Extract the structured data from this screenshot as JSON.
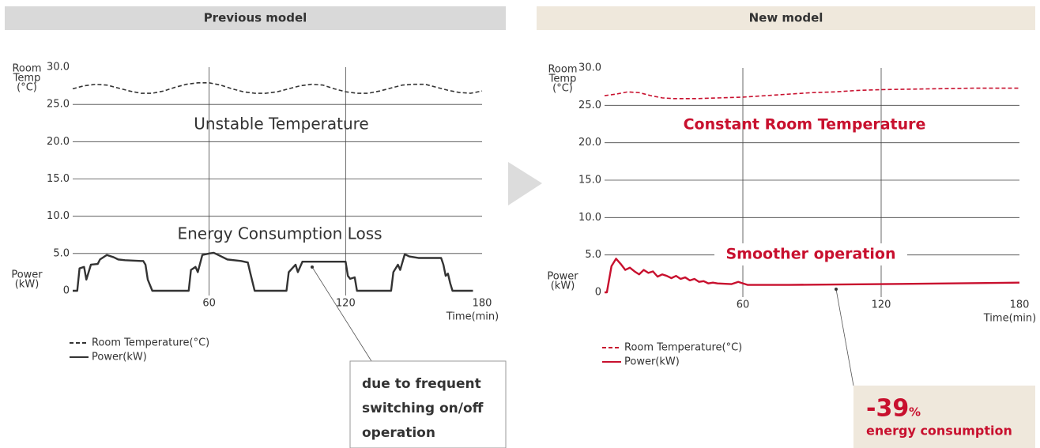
{
  "chart_data": [
    {
      "type": "line",
      "title": "Previous model",
      "ylabel_top": [
        "Room",
        "Temp",
        "(°C)"
      ],
      "ylabel_bottom": [
        "Power",
        "(kW)"
      ],
      "xlabel": "Time(min)",
      "xlim": [
        0,
        180
      ],
      "xticks": [
        60,
        120,
        180
      ],
      "ylim": [
        0,
        30
      ],
      "yticks": [
        0,
        {
          "value": 5,
          "label": "5.0"
        },
        {
          "value": 10,
          "label": "10.0"
        },
        {
          "value": 15,
          "label": "15.0"
        },
        {
          "value": 20,
          "label": "20.0"
        },
        {
          "value": 25,
          "label": "25.0"
        },
        {
          "value": 30,
          "label": "30.0"
        }
      ],
      "grid": true,
      "annotations": [
        "Unstable Temperature",
        "Energy Consumption Loss"
      ],
      "callout": [
        "due to frequent",
        "switching on/off",
        "operation"
      ],
      "series": [
        {
          "name": "Room Temperature(°C)",
          "color": "#333333",
          "style": "dashed",
          "x": [
            0,
            5,
            10,
            15,
            20,
            25,
            30,
            35,
            40,
            45,
            50,
            55,
            60,
            65,
            70,
            75,
            80,
            85,
            90,
            95,
            100,
            105,
            110,
            115,
            120,
            125,
            130,
            135,
            140,
            145,
            150,
            155,
            160,
            165,
            170,
            175,
            180
          ],
          "values": [
            27.1,
            27.5,
            27.7,
            27.6,
            27.2,
            26.8,
            26.5,
            26.5,
            26.8,
            27.3,
            27.7,
            27.9,
            27.9,
            27.6,
            27.1,
            26.7,
            26.5,
            26.5,
            26.7,
            27.1,
            27.5,
            27.7,
            27.6,
            27.1,
            26.7,
            26.5,
            26.5,
            26.8,
            27.2,
            27.6,
            27.7,
            27.7,
            27.3,
            26.9,
            26.6,
            26.5,
            26.8
          ]
        },
        {
          "name": "Power(kW)",
          "color": "#333333",
          "style": "solid",
          "x": [
            0,
            2,
            3,
            5,
            6,
            8,
            11,
            12,
            15,
            18,
            20,
            23,
            30,
            31,
            32,
            33,
            35,
            51,
            52,
            54,
            55,
            57,
            60,
            62,
            64,
            68,
            74,
            77,
            78,
            80,
            94,
            95,
            98,
            99,
            101,
            120,
            121,
            122,
            124,
            125,
            140,
            141,
            143,
            144,
            146,
            148,
            152,
            162,
            163,
            164,
            165,
            166,
            167,
            176
          ],
          "values": [
            0,
            0,
            3,
            3.2,
            1.5,
            3.5,
            3.6,
            4.2,
            4.8,
            4.5,
            4.2,
            4.1,
            4,
            4,
            3.5,
            1.5,
            0,
            0,
            2.8,
            3.2,
            2.5,
            4.8,
            5,
            5.1,
            4.8,
            4.2,
            4,
            3.8,
            2.5,
            0,
            0,
            2.5,
            3.5,
            2.5,
            3.9,
            3.9,
            2,
            1.6,
            1.8,
            0,
            0,
            2.5,
            3.5,
            2.8,
            4.9,
            4.6,
            4.4,
            4.4,
            3.5,
            2,
            2.3,
            1,
            0,
            0
          ]
        }
      ]
    },
    {
      "type": "line",
      "title": "New model",
      "ylabel_top": [
        "Room",
        "Temp",
        "(°C)"
      ],
      "ylabel_bottom": [
        "Power",
        "(kW)"
      ],
      "xlabel": "Time(min)",
      "xlim": [
        0,
        180
      ],
      "xticks": [
        60,
        120,
        180
      ],
      "ylim": [
        0,
        30
      ],
      "yticks": [
        0,
        {
          "value": 5,
          "label": "5.0"
        },
        {
          "value": 10,
          "label": "10.0"
        },
        {
          "value": 15,
          "label": "15.0"
        },
        {
          "value": 20,
          "label": "20.0"
        },
        {
          "value": 25,
          "label": "25.0"
        },
        {
          "value": 30,
          "label": "30.0"
        }
      ],
      "grid": true,
      "annotations": [
        "Constant Room Temperature",
        "Smoother operation"
      ],
      "callout": [
        "-39",
        "%",
        "energy consumption"
      ],
      "series": [
        {
          "name": "Room Temperature(°C)",
          "color": "#c8102e",
          "style": "dashed",
          "x": [
            0,
            5,
            10,
            15,
            20,
            25,
            30,
            40,
            50,
            60,
            70,
            80,
            90,
            100,
            110,
            120,
            140,
            160,
            180
          ],
          "values": [
            26.3,
            26.5,
            26.8,
            26.7,
            26.3,
            26.0,
            25.9,
            25.9,
            26.0,
            26.1,
            26.3,
            26.5,
            26.7,
            26.8,
            27.0,
            27.1,
            27.2,
            27.3,
            27.3
          ]
        },
        {
          "name": "Power(kW)",
          "color": "#c8102e",
          "style": "solid",
          "x": [
            0,
            1,
            3,
            5,
            7,
            9,
            11,
            13,
            15,
            17,
            19,
            21,
            23,
            25,
            27,
            29,
            31,
            33,
            35,
            37,
            39,
            41,
            43,
            45,
            47,
            49,
            55,
            58,
            62,
            80,
            120,
            180
          ],
          "values": [
            0,
            0,
            3.5,
            4.5,
            3.8,
            3,
            3.3,
            2.8,
            2.4,
            3,
            2.6,
            2.8,
            2.1,
            2.4,
            2.2,
            1.9,
            2.2,
            1.8,
            2,
            1.6,
            1.8,
            1.4,
            1.5,
            1.2,
            1.3,
            1.2,
            1.1,
            1.4,
            1,
            1,
            1.1,
            1.3
          ]
        }
      ]
    }
  ]
}
